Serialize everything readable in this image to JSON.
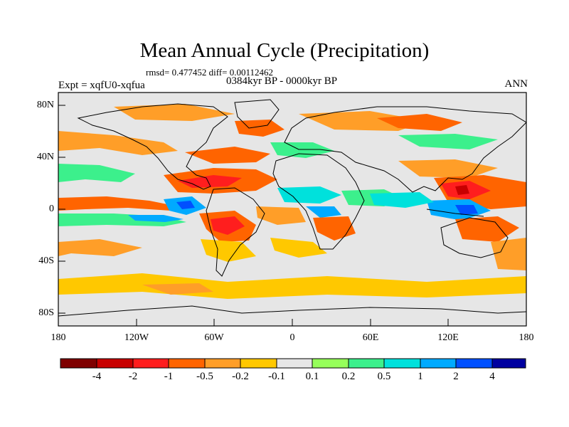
{
  "header": {
    "title": "Mean Annual Cycle (Precipitation)",
    "stats": "rmsd= 0.477452 diff= 0.00112462",
    "period": "0384kyr BP - 0000kyr BP",
    "experiment": "Expt = xqfU0-xqfua",
    "season": "ANN"
  },
  "map": {
    "projection": "cylindrical-equidistant",
    "lon_range": [
      -180,
      180
    ],
    "lat_range": [
      -90,
      90
    ],
    "y_ticks": [
      "80N",
      "40N",
      "0",
      "40S",
      "80S"
    ],
    "x_ticks": [
      "180",
      "120W",
      "60W",
      "0",
      "60E",
      "120E",
      "180"
    ],
    "background_color": "#e6e6e6"
  },
  "colorbar": {
    "colors": [
      "#7f0000",
      "#c80000",
      "#ff1e1e",
      "#ff6400",
      "#ff9e28",
      "#ffc800",
      "#e6e6e6",
      "#96ff5a",
      "#3cf08c",
      "#00e1dc",
      "#00aaff",
      "#0050ff",
      "#0000a0"
    ],
    "labels": [
      "-4",
      "-2",
      "-1",
      "-0.5",
      "-0.2",
      "-0.1",
      "0.1",
      "0.2",
      "0.5",
      "1",
      "2",
      "4"
    ]
  }
}
